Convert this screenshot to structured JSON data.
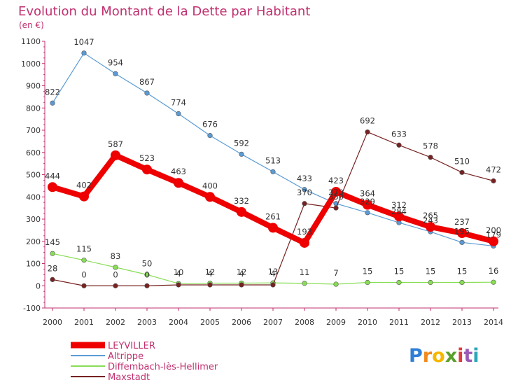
{
  "chart_data": {
    "type": "line",
    "title": "Evolution du Montant de la Dette par Habitant",
    "ylabel": "(en €)",
    "x": [
      "2000",
      "2001",
      "2002",
      "2003",
      "2004",
      "2005",
      "2006",
      "2007",
      "2008",
      "2009",
      "2010",
      "2011",
      "2012",
      "2013",
      "2014"
    ],
    "ylim": [
      -100,
      1100
    ],
    "yticks": [
      -100,
      0,
      100,
      200,
      300,
      400,
      500,
      600,
      700,
      800,
      900,
      1000,
      1100
    ],
    "grid": false,
    "legend": "bottom-left",
    "series": [
      {
        "name": "LEYVILLER",
        "color": "#ee0000",
        "values": [
          444,
          402,
          587,
          523,
          463,
          400,
          332,
          261,
          193,
          423,
          364,
          312,
          265,
          237,
          200
        ]
      },
      {
        "name": "Altrippe",
        "color": "#5b9bd5",
        "values": [
          822,
          1047,
          954,
          867,
          774,
          676,
          592,
          513,
          433,
          370,
          329,
          284,
          243,
          195,
          179
        ]
      },
      {
        "name": "Diffembach-lès-Hellimer",
        "color": "#88dd55",
        "values": [
          145,
          115,
          83,
          50,
          10,
          12,
          12,
          13,
          11,
          7,
          15,
          15,
          15,
          15,
          16
        ]
      },
      {
        "name": "Maxstadt",
        "color": "#772222",
        "values": [
          28,
          0,
          0,
          0,
          4,
          4,
          4,
          4,
          370,
          350,
          692,
          633,
          578,
          510,
          472
        ]
      }
    ]
  },
  "logo": {
    "letters": [
      "P",
      "r",
      "o",
      "x",
      "i",
      "t",
      "i"
    ],
    "colors": [
      "#2f7fd6",
      "#f08a1c",
      "#f5b700",
      "#5aa02c",
      "#e23a3a",
      "#9b59b6",
      "#2aa7b8"
    ]
  }
}
